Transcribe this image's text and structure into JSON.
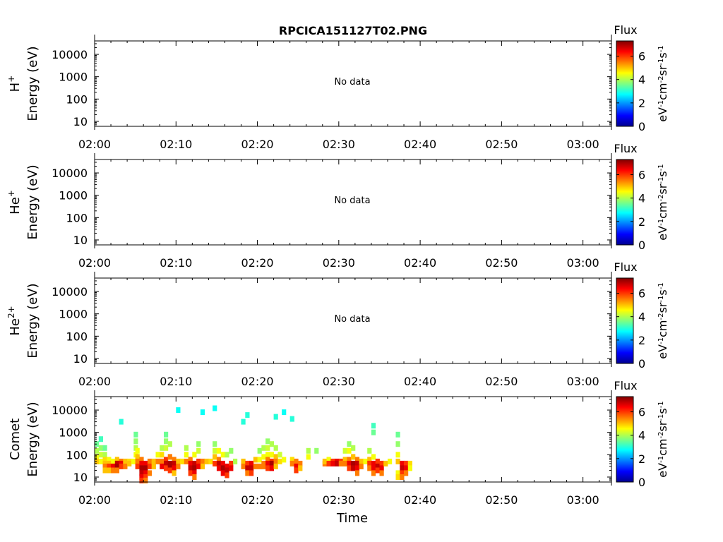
{
  "figure": {
    "title": "RPCICA151127T02.PNG",
    "xlabel": "Time",
    "colorbar_label": "Flux",
    "colorbar_units": [
      "eV",
      "-1",
      "cm",
      "-2",
      "sr",
      "-1",
      "s",
      "-1"
    ],
    "colorbar_ticks": [
      "0",
      "2",
      "4",
      "6"
    ],
    "colormap": "jet",
    "no_data_text": "No data"
  },
  "chart_data": [
    {
      "type": "heatmap",
      "species": "H",
      "species_sup": "+",
      "ylabel": "Energy (eV)",
      "yscale": "log",
      "ylim": [
        6,
        40000
      ],
      "y_ticks": [
        "10",
        "100",
        "1000",
        "10000"
      ],
      "x_ticks": [
        "02:00",
        "02:10",
        "02:20",
        "02:30",
        "02:40",
        "02:50",
        "03:00"
      ],
      "xlim_minutes": [
        0,
        63.5
      ],
      "clim": [
        0,
        7.3
      ],
      "no_data": true,
      "cells": []
    },
    {
      "type": "heatmap",
      "species": "He",
      "species_sup": "+",
      "ylabel": "Energy (eV)",
      "yscale": "log",
      "ylim": [
        6,
        40000
      ],
      "y_ticks": [
        "10",
        "100",
        "1000",
        "10000"
      ],
      "x_ticks": [
        "02:00",
        "02:10",
        "02:20",
        "02:30",
        "02:40",
        "02:50",
        "03:00"
      ],
      "xlim_minutes": [
        0,
        63.5
      ],
      "clim": [
        0,
        7.3
      ],
      "no_data": true,
      "cells": []
    },
    {
      "type": "heatmap",
      "species": "He",
      "species_sup": "2+",
      "ylabel": "Energy (eV)",
      "yscale": "log",
      "ylim": [
        6,
        40000
      ],
      "y_ticks": [
        "10",
        "100",
        "1000",
        "10000"
      ],
      "x_ticks": [
        "02:00",
        "02:10",
        "02:20",
        "02:30",
        "02:40",
        "02:50",
        "03:00"
      ],
      "xlim_minutes": [
        0,
        63.5
      ],
      "clim": [
        0,
        7.3
      ],
      "no_data": true,
      "cells": []
    },
    {
      "type": "heatmap",
      "species": "Comet",
      "species_sup": "",
      "ylabel": "Energy (eV)",
      "yscale": "log",
      "ylim": [
        6,
        40000
      ],
      "y_ticks": [
        "10",
        "100",
        "1000",
        "10000"
      ],
      "x_ticks": [
        "02:00",
        "02:10",
        "02:20",
        "02:30",
        "02:40",
        "02:50",
        "03:00"
      ],
      "xlim_minutes": [
        0,
        63.5
      ],
      "clim": [
        0,
        7.3
      ],
      "no_data": false,
      "cells": [
        [
          0.0,
          300,
          3.5
        ],
        [
          0.0,
          150,
          4.0
        ],
        [
          0.0,
          80,
          4.5
        ],
        [
          0.0,
          50,
          5.0
        ],
        [
          0.5,
          500,
          3.2
        ],
        [
          0.5,
          200,
          3.8
        ],
        [
          0.5,
          100,
          4.2
        ],
        [
          0.5,
          50,
          4.5
        ],
        [
          1.0,
          200,
          3.5
        ],
        [
          1.0,
          100,
          4.0
        ],
        [
          1.0,
          60,
          4.8
        ],
        [
          1.0,
          40,
          5.0
        ],
        [
          1.0,
          30,
          5.5
        ],
        [
          1.0,
          20,
          5.0
        ],
        [
          1.5,
          60,
          4.5
        ],
        [
          1.5,
          40,
          5.0
        ],
        [
          1.5,
          30,
          6.0
        ],
        [
          1.5,
          20,
          5.0
        ],
        [
          2.0,
          50,
          4.5
        ],
        [
          2.0,
          30,
          6.5
        ],
        [
          2.0,
          20,
          5.5
        ],
        [
          2.5,
          60,
          5.0
        ],
        [
          2.5,
          40,
          6.8
        ],
        [
          2.5,
          30,
          7.0
        ],
        [
          2.5,
          20,
          5.5
        ],
        [
          3.0,
          50,
          5.5
        ],
        [
          3.0,
          40,
          6.5
        ],
        [
          3.0,
          30,
          6.0
        ],
        [
          3.0,
          3000,
          3.0
        ],
        [
          3.5,
          50,
          5.0
        ],
        [
          3.5,
          30,
          5.5
        ],
        [
          4.0,
          50,
          4.8
        ],
        [
          4.0,
          40,
          5.0
        ],
        [
          4.5,
          50,
          4.5
        ],
        [
          4.8,
          800,
          3.5
        ],
        [
          4.8,
          400,
          3.8
        ],
        [
          4.8,
          200,
          4.0
        ],
        [
          4.8,
          100,
          4.5
        ],
        [
          5.0,
          150,
          4.5
        ],
        [
          5.0,
          80,
          5.0
        ],
        [
          5.0,
          50,
          5.5
        ],
        [
          5.0,
          30,
          6.0
        ],
        [
          5.5,
          60,
          5.5
        ],
        [
          5.5,
          40,
          6.5
        ],
        [
          5.5,
          25,
          7.0
        ],
        [
          5.5,
          15,
          6.8
        ],
        [
          5.5,
          10,
          6.5
        ],
        [
          5.5,
          7,
          6.0
        ],
        [
          6.0,
          40,
          6.5
        ],
        [
          6.0,
          25,
          7.0
        ],
        [
          6.0,
          15,
          6.5
        ],
        [
          6.0,
          10,
          6.0
        ],
        [
          6.0,
          7,
          5.5
        ],
        [
          6.5,
          50,
          5.5
        ],
        [
          6.5,
          30,
          6.0
        ],
        [
          6.5,
          15,
          5.5
        ],
        [
          7.0,
          50,
          5.0
        ],
        [
          7.0,
          30,
          5.0
        ],
        [
          7.5,
          100,
          4.5
        ],
        [
          7.5,
          50,
          5.5
        ],
        [
          8.0,
          200,
          4.0
        ],
        [
          8.0,
          100,
          4.8
        ],
        [
          8.0,
          50,
          5.5
        ],
        [
          8.0,
          30,
          6.5
        ],
        [
          8.5,
          800,
          3.5
        ],
        [
          8.5,
          400,
          3.8
        ],
        [
          8.5,
          200,
          4.2
        ],
        [
          8.5,
          60,
          6.0
        ],
        [
          8.5,
          40,
          6.8
        ],
        [
          8.5,
          25,
          6.0
        ],
        [
          9.0,
          300,
          4.0
        ],
        [
          9.0,
          80,
          5.5
        ],
        [
          9.0,
          40,
          7.0
        ],
        [
          9.0,
          30,
          7.0
        ],
        [
          9.0,
          20,
          6.0
        ],
        [
          9.5,
          60,
          5.5
        ],
        [
          9.5,
          40,
          6.8
        ],
        [
          9.5,
          25,
          6.5
        ],
        [
          9.5,
          15,
          5.0
        ],
        [
          10.0,
          50,
          5.0
        ],
        [
          10.0,
          30,
          5.5
        ],
        [
          10.0,
          10000,
          2.8
        ],
        [
          10.5,
          50,
          4.8
        ],
        [
          11.0,
          200,
          4.0
        ],
        [
          11.0,
          100,
          4.5
        ],
        [
          11.0,
          50,
          5.5
        ],
        [
          11.5,
          60,
          5.5
        ],
        [
          11.5,
          40,
          6.5
        ],
        [
          11.5,
          25,
          6.8
        ],
        [
          11.5,
          15,
          6.0
        ],
        [
          12.0,
          100,
          4.5
        ],
        [
          12.0,
          40,
          6.8
        ],
        [
          12.0,
          25,
          7.0
        ],
        [
          12.0,
          15,
          6.5
        ],
        [
          12.0,
          10,
          5.5
        ],
        [
          12.5,
          300,
          3.8
        ],
        [
          12.5,
          150,
          4.2
        ],
        [
          12.5,
          50,
          6.0
        ],
        [
          12.5,
          30,
          6.5
        ],
        [
          13.0,
          50,
          5.5
        ],
        [
          13.0,
          30,
          5.0
        ],
        [
          13.0,
          8000,
          2.8
        ],
        [
          13.5,
          50,
          5.0
        ],
        [
          14.0,
          50,
          4.8
        ],
        [
          14.5,
          300,
          3.8
        ],
        [
          14.5,
          150,
          4.2
        ],
        [
          14.5,
          80,
          5.0
        ],
        [
          14.5,
          40,
          6.0
        ],
        [
          14.5,
          12000,
          2.8
        ],
        [
          15.0,
          150,
          4.5
        ],
        [
          15.0,
          60,
          5.5
        ],
        [
          15.0,
          40,
          6.8
        ],
        [
          15.0,
          25,
          6.5
        ],
        [
          15.5,
          100,
          4.5
        ],
        [
          15.5,
          40,
          6.5
        ],
        [
          15.5,
          25,
          7.0
        ],
        [
          15.5,
          15,
          6.5
        ],
        [
          16.0,
          100,
          4.0
        ],
        [
          16.0,
          30,
          6.5
        ],
        [
          16.0,
          20,
          6.8
        ],
        [
          16.0,
          12,
          6.0
        ],
        [
          16.5,
          150,
          3.8
        ],
        [
          16.5,
          40,
          6.0
        ],
        [
          16.5,
          25,
          6.5
        ],
        [
          17.0,
          50,
          4.0
        ],
        [
          18.0,
          50,
          5.0
        ],
        [
          18.0,
          30,
          5.5
        ],
        [
          18.0,
          3000,
          3.0
        ],
        [
          18.5,
          40,
          6.0
        ],
        [
          18.5,
          25,
          6.8
        ],
        [
          18.5,
          15,
          5.5
        ],
        [
          18.5,
          6000,
          3.0
        ],
        [
          19.0,
          40,
          6.5
        ],
        [
          19.0,
          25,
          6.8
        ],
        [
          19.0,
          15,
          6.0
        ],
        [
          19.5,
          60,
          5.0
        ],
        [
          19.5,
          30,
          5.5
        ],
        [
          20.0,
          150,
          3.8
        ],
        [
          20.0,
          60,
          4.5
        ],
        [
          20.0,
          30,
          5.5
        ],
        [
          20.5,
          200,
          4.0
        ],
        [
          20.5,
          80,
          4.5
        ],
        [
          20.5,
          40,
          5.5
        ],
        [
          20.5,
          30,
          5.5
        ],
        [
          21.0,
          400,
          3.8
        ],
        [
          21.0,
          200,
          4.2
        ],
        [
          21.0,
          100,
          4.5
        ],
        [
          21.0,
          60,
          5.5
        ],
        [
          21.0,
          40,
          6.5
        ],
        [
          21.0,
          25,
          6.0
        ],
        [
          21.5,
          300,
          4.0
        ],
        [
          21.5,
          100,
          4.5
        ],
        [
          21.5,
          50,
          6.0
        ],
        [
          21.5,
          40,
          7.0
        ],
        [
          21.5,
          25,
          6.5
        ],
        [
          22.0,
          200,
          4.0
        ],
        [
          22.0,
          80,
          5.0
        ],
        [
          22.0,
          50,
          5.5
        ],
        [
          22.0,
          30,
          5.0
        ],
        [
          22.0,
          5000,
          3.0
        ],
        [
          22.5,
          100,
          4.2
        ],
        [
          22.5,
          50,
          4.8
        ],
        [
          23.0,
          60,
          4.5
        ],
        [
          23.0,
          8000,
          2.8
        ],
        [
          24.0,
          60,
          4.8
        ],
        [
          24.0,
          40,
          5.5
        ],
        [
          24.0,
          4000,
          3.0
        ],
        [
          24.5,
          50,
          5.5
        ],
        [
          24.5,
          30,
          6.5
        ],
        [
          24.5,
          20,
          6.0
        ],
        [
          25.0,
          40,
          5.5
        ],
        [
          25.0,
          25,
          5.0
        ],
        [
          26.0,
          150,
          4.0
        ],
        [
          26.0,
          80,
          4.5
        ],
        [
          27.0,
          150,
          3.8
        ],
        [
          28.0,
          40,
          5.5
        ],
        [
          28.0,
          50,
          5.0
        ],
        [
          28.5,
          60,
          4.5
        ],
        [
          28.5,
          40,
          6.0
        ],
        [
          29.0,
          50,
          6.0
        ],
        [
          29.0,
          40,
          6.5
        ],
        [
          29.5,
          50,
          6.5
        ],
        [
          29.5,
          40,
          6.8
        ],
        [
          30.0,
          50,
          6.0
        ],
        [
          30.0,
          40,
          5.5
        ],
        [
          30.5,
          150,
          4.2
        ],
        [
          30.5,
          60,
          5.0
        ],
        [
          30.5,
          40,
          5.5
        ],
        [
          31.0,
          300,
          3.8
        ],
        [
          31.0,
          150,
          4.5
        ],
        [
          31.0,
          60,
          5.5
        ],
        [
          31.0,
          40,
          6.5
        ],
        [
          31.0,
          25,
          6.0
        ],
        [
          31.5,
          200,
          4.0
        ],
        [
          31.5,
          80,
          5.0
        ],
        [
          31.5,
          40,
          7.0
        ],
        [
          31.5,
          25,
          6.8
        ],
        [
          32.0,
          60,
          5.5
        ],
        [
          32.0,
          40,
          6.8
        ],
        [
          32.0,
          25,
          6.5
        ],
        [
          32.0,
          15,
          5.5
        ],
        [
          32.5,
          50,
          5.0
        ],
        [
          32.5,
          30,
          5.5
        ],
        [
          33.0,
          50,
          4.5
        ],
        [
          33.5,
          150,
          4.0
        ],
        [
          33.5,
          60,
          5.0
        ],
        [
          33.5,
          40,
          6.0
        ],
        [
          33.5,
          25,
          5.5
        ],
        [
          34.0,
          80,
          4.5
        ],
        [
          34.0,
          40,
          6.5
        ],
        [
          34.0,
          25,
          6.5
        ],
        [
          34.0,
          15,
          5.5
        ],
        [
          34.0,
          2000,
          3.2
        ],
        [
          34.0,
          1000,
          3.5
        ],
        [
          34.5,
          50,
          6.0
        ],
        [
          34.5,
          30,
          6.8
        ],
        [
          34.5,
          20,
          6.0
        ],
        [
          35.0,
          40,
          6.0
        ],
        [
          35.0,
          25,
          6.5
        ],
        [
          35.0,
          15,
          5.5
        ],
        [
          35.5,
          40,
          5.0
        ],
        [
          36.0,
          50,
          4.5
        ],
        [
          37.0,
          800,
          3.5
        ],
        [
          37.0,
          300,
          3.8
        ],
        [
          37.0,
          100,
          4.5
        ],
        [
          37.0,
          50,
          5.0
        ],
        [
          37.0,
          15,
          4.5
        ],
        [
          37.0,
          10,
          4.8
        ],
        [
          37.5,
          40,
          6.5
        ],
        [
          37.5,
          25,
          6.8
        ],
        [
          37.5,
          15,
          6.0
        ],
        [
          37.5,
          10,
          5.5
        ],
        [
          38.0,
          40,
          6.0
        ],
        [
          38.0,
          25,
          6.5
        ],
        [
          38.0,
          15,
          5.5
        ],
        [
          38.5,
          40,
          4.8
        ],
        [
          38.5,
          25,
          4.5
        ]
      ]
    }
  ]
}
